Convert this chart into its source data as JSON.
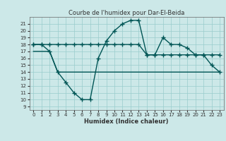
{
  "title": "Courbe de l'humidex pour Dar-El-Beida",
  "xlabel": "Humidex (Indice chaleur)",
  "ylabel": "",
  "bg_color": "#cce8e8",
  "grid_color": "#99cccc",
  "line_color": "#005555",
  "xlim": [
    -0.5,
    23.5
  ],
  "ylim": [
    8.5,
    22
  ],
  "yticks": [
    9,
    10,
    11,
    12,
    13,
    14,
    15,
    16,
    17,
    18,
    19,
    20,
    21
  ],
  "xticks": [
    0,
    1,
    2,
    3,
    4,
    5,
    6,
    7,
    8,
    9,
    10,
    11,
    12,
    13,
    14,
    15,
    16,
    17,
    18,
    19,
    20,
    21,
    22,
    23
  ],
  "main_curve_x": [
    0,
    1,
    2,
    3,
    4,
    5,
    6,
    7,
    8,
    9,
    10,
    11,
    12,
    13,
    14,
    15,
    16,
    17,
    18,
    19,
    20,
    21,
    22,
    23
  ],
  "main_curve_y": [
    18,
    18,
    17,
    14,
    12.5,
    11,
    10,
    10,
    16,
    18.5,
    20,
    21,
    21.5,
    21.5,
    16.5,
    16.5,
    19,
    18,
    18,
    17.5,
    16.5,
    16.5,
    15,
    14
  ],
  "upper_line_x": [
    0,
    1,
    2,
    3,
    4,
    5,
    6,
    7,
    8,
    9,
    10,
    11,
    12,
    13,
    14,
    15,
    16,
    17,
    18,
    19,
    20,
    21,
    22,
    23
  ],
  "upper_line_y": [
    18,
    18,
    18,
    18,
    18,
    18,
    18,
    18,
    18,
    18,
    18,
    18,
    18,
    18,
    16.5,
    16.5,
    16.5,
    16.5,
    16.5,
    16.5,
    16.5,
    16.5,
    16.5,
    16.5
  ],
  "lower_line_x": [
    0,
    1,
    2,
    3,
    4,
    5,
    6,
    7,
    8,
    9,
    10,
    11,
    12,
    13,
    14,
    15,
    16,
    17,
    18,
    19,
    20,
    21,
    22,
    23
  ],
  "lower_line_y": [
    17,
    17,
    17,
    14,
    14,
    14,
    14,
    14,
    14,
    14,
    14,
    14,
    14,
    14,
    14,
    14,
    14,
    14,
    14,
    14,
    14,
    14,
    14,
    14
  ],
  "marker": "+",
  "markersize": 4,
  "markeredgewidth": 1.0,
  "linewidth": 1.0,
  "title_fontsize": 6,
  "xlabel_fontsize": 6,
  "tick_fontsize": 5
}
